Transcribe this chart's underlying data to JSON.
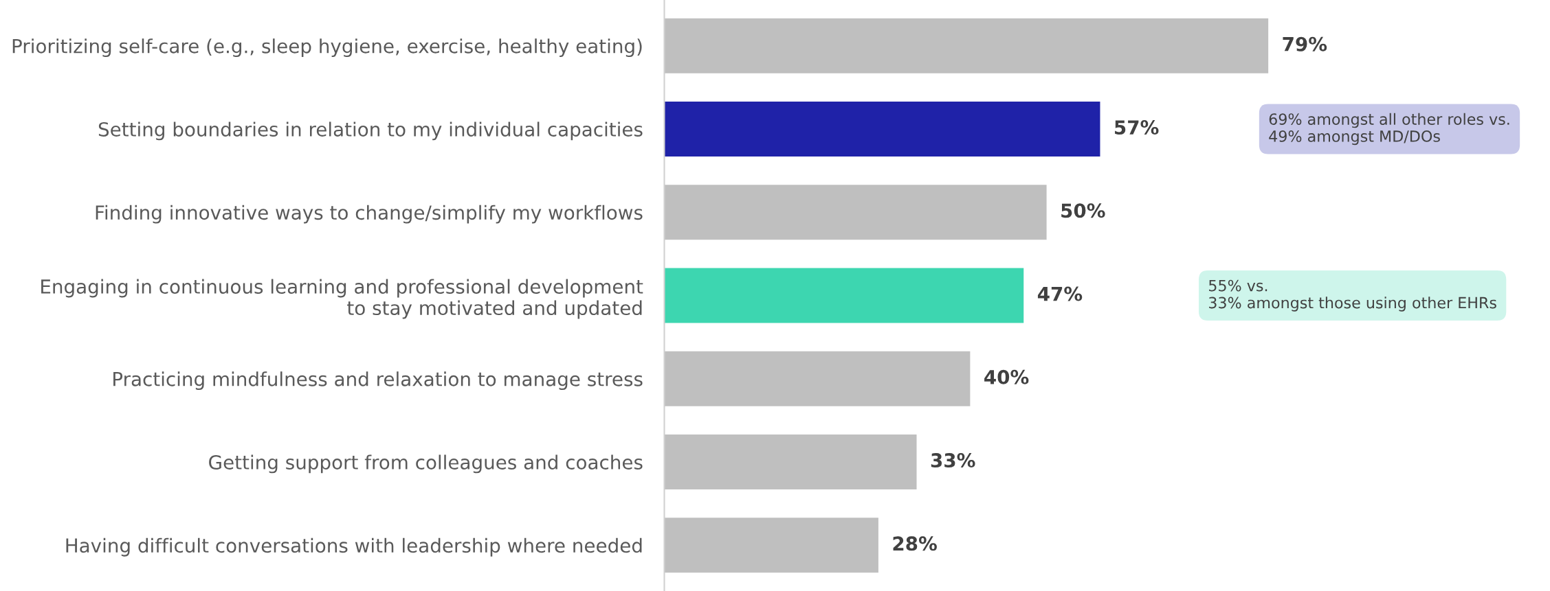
{
  "chart_data": {
    "type": "bar",
    "orientation": "horizontal",
    "categories": [
      "Prioritizing self-care (e.g., sleep hygiene, exercise, healthy eating)",
      "Setting boundaries in relation to my individual capacities",
      "Finding innovative ways to change/simplify my workflows",
      "Engaging in continuous learning and professional development\nto stay motivated and updated",
      "Practicing mindfulness and relaxation to manage stress",
      "Getting support from colleagues and coaches",
      "Having difficult conversations with leadership where needed"
    ],
    "values": [
      79,
      57,
      50,
      47,
      40,
      33,
      28
    ],
    "colors": [
      "#bfbfbf",
      "#1f22a8",
      "#bfbfbf",
      "#3dd6b0",
      "#bfbfbf",
      "#bfbfbf",
      "#bfbfbf"
    ],
    "value_labels": [
      "79%",
      "57%",
      "50%",
      "47%",
      "40%",
      "33%",
      "28%"
    ],
    "annotations": [
      "69% amongst all other roles vs.\n49% amongst MD/DOs",
      "55% vs.\n33% amongst those using other EHRs"
    ],
    "grid": false,
    "legend": false,
    "tick_labels": "y"
  }
}
